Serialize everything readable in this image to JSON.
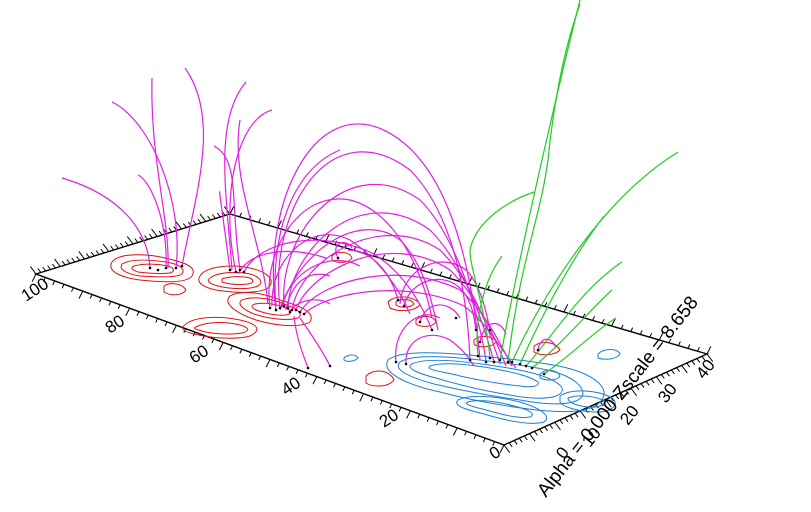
{
  "figure": {
    "caption": "Alpha = 0.000 Zscale = 8.658",
    "y_tick_labels": [
      "0",
      "20",
      "40",
      "60",
      "80",
      "100"
    ],
    "x_tick_labels": [
      "0",
      "10",
      "20",
      "30",
      "40"
    ]
  },
  "colors": {
    "closed_field_lines": "#e020e0",
    "open_field_lines": "#22cc22",
    "positive_polarity_contours": "#e01010",
    "negative_polarity_contours": "#1a7fd8",
    "footpoints": "#000000",
    "axes": "#000000"
  }
}
